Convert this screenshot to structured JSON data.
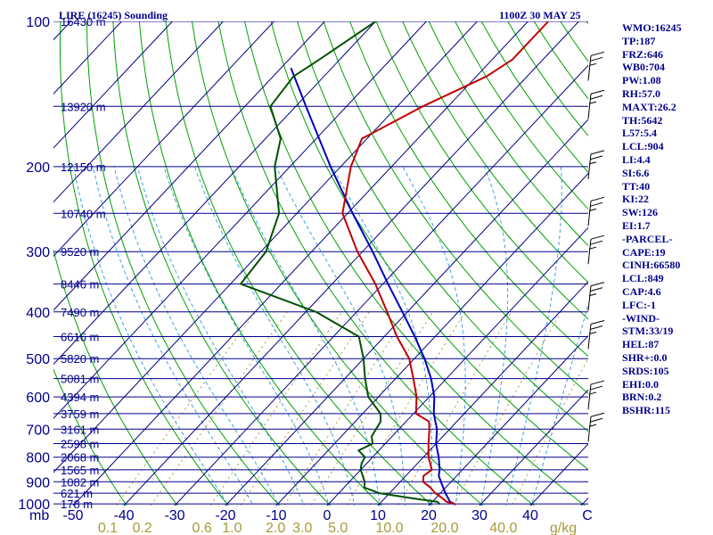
{
  "header": {
    "title": "LIRE (16245) Sounding",
    "datetime": "1100Z 30 MAY 25"
  },
  "indices": [
    "WMO:16245",
    "TP:187",
    "FRZ:646",
    "WB0:704",
    "PW:1.08",
    "RH:57.0",
    "MAXT:26.2",
    "TH:5642",
    "L57:5.4",
    "LCL:904",
    "LI:4.4",
    "SI:6.6",
    "TT:40",
    "KI:22",
    "SW:126",
    "EI:1.7",
    "-PARCEL-",
    "CAPE:19",
    "CINH:66580",
    "LCL:849",
    "CAP:4.6",
    "LFC:-1",
    "-WIND-",
    "STM:33/19",
    "HEL:87",
    "SHR+:0.0",
    "SRDS:105",
    "EHI:0.0",
    "BRN:0.2",
    "BSHR:115"
  ],
  "colors": {
    "temperature": "#c00000",
    "dewpoint": "#005000",
    "parcel": "#0000c0",
    "isotherm": "#000080",
    "dry_adiabat": "#00a000",
    "moist_adiabat": "#40a0e0",
    "mixing_ratio": "#a89a3a",
    "isobar": "#00008b"
  },
  "chart_data": {
    "type": "skew-t",
    "pressure_axis_label": "mb",
    "temperature_unit_label": "g/kg",
    "pressure_ticks": [
      "100",
      "200",
      "300",
      "400",
      "500",
      "600",
      "700",
      "800",
      "900",
      "1000"
    ],
    "temperature_ticks": [
      "-50",
      "-40",
      "-30",
      "-20",
      "-10",
      "0",
      "10",
      "20",
      "30",
      "40",
      "C"
    ],
    "mixing_ratio_ticks": [
      "0.1",
      "0.2",
      "0.6",
      "1.0",
      "2.0",
      "3.0",
      "5.0",
      "10.0",
      "20.0",
      "40.0"
    ],
    "height_levels": [
      {
        "p": 100,
        "label": "16430 m"
      },
      {
        "p": 150,
        "label": "13920 m"
      },
      {
        "p": 200,
        "label": "12150 m"
      },
      {
        "p": 250,
        "label": "10740 m"
      },
      {
        "p": 300,
        "label": "9520 m"
      },
      {
        "p": 350,
        "label": "8446 m"
      },
      {
        "p": 400,
        "label": "7490 m"
      },
      {
        "p": 450,
        "label": "6616 m"
      },
      {
        "p": 500,
        "label": "5820 m"
      },
      {
        "p": 550,
        "label": "5081 m"
      },
      {
        "p": 600,
        "label": "4394 m"
      },
      {
        "p": 650,
        "label": "3759 m"
      },
      {
        "p": 700,
        "label": "3161 m"
      },
      {
        "p": 750,
        "label": "2598 m"
      },
      {
        "p": 800,
        "label": "2068 m"
      },
      {
        "p": 850,
        "label": "1565 m"
      },
      {
        "p": 900,
        "label": "1082 m"
      },
      {
        "p": 950,
        "label": "621 m"
      },
      {
        "p": 1000,
        "label": "178 m"
      }
    ],
    "temperature": [
      [
        1002,
        25.0
      ],
      [
        990,
        22.8
      ],
      [
        970,
        21.0
      ],
      [
        950,
        19.0
      ],
      [
        925,
        17.0
      ],
      [
        900,
        14.5
      ],
      [
        875,
        13.5
      ],
      [
        850,
        14.0
      ],
      [
        800,
        11.0
      ],
      [
        750,
        8.5
      ],
      [
        700,
        6.0
      ],
      [
        675,
        4.5
      ],
      [
        650,
        0.5
      ],
      [
        600,
        -2.5
      ],
      [
        550,
        -6.5
      ],
      [
        500,
        -11.0
      ],
      [
        450,
        -17.5
      ],
      [
        400,
        -24.0
      ],
      [
        350,
        -31.5
      ],
      [
        300,
        -41.0
      ],
      [
        250,
        -51.0
      ],
      [
        200,
        -58.0
      ],
      [
        175,
        -61.0
      ],
      [
        150,
        -55.0
      ],
      [
        130,
        -48.0
      ],
      [
        120,
        -46.0
      ],
      [
        100,
        -46.0
      ]
    ],
    "dewpoint": [
      [
        1002,
        22.0
      ],
      [
        990,
        21.0
      ],
      [
        975,
        16.0
      ],
      [
        950,
        8.0
      ],
      [
        925,
        4.0
      ],
      [
        900,
        3.0
      ],
      [
        850,
        0.0
      ],
      [
        825,
        -1.0
      ],
      [
        800,
        -1.5
      ],
      [
        775,
        -4.0
      ],
      [
        750,
        -2.5
      ],
      [
        725,
        -4.0
      ],
      [
        700,
        -4.5
      ],
      [
        675,
        -5.0
      ],
      [
        650,
        -6.5
      ],
      [
        600,
        -12.0
      ],
      [
        550,
        -16.0
      ],
      [
        500,
        -20.0
      ],
      [
        450,
        -25.0
      ],
      [
        400,
        -38.0
      ],
      [
        350,
        -58.0
      ],
      [
        300,
        -59.0
      ],
      [
        250,
        -63.5
      ],
      [
        200,
        -73.0
      ],
      [
        175,
        -77.0
      ],
      [
        150,
        -85.0
      ],
      [
        130,
        -86.0
      ],
      [
        120,
        -84.0
      ],
      [
        100,
        -80.0
      ]
    ],
    "parcel": [
      [
        1002,
        25.0
      ],
      [
        990,
        23.5
      ],
      [
        950,
        21.0
      ],
      [
        900,
        18.0
      ],
      [
        875,
        16.5
      ],
      [
        849,
        15.5
      ],
      [
        800,
        13.0
      ],
      [
        750,
        10.0
      ],
      [
        700,
        7.5
      ],
      [
        650,
        4.0
      ],
      [
        600,
        1.0
      ],
      [
        550,
        -3.0
      ],
      [
        500,
        -8.0
      ],
      [
        450,
        -14.0
      ],
      [
        400,
        -21.0
      ],
      [
        350,
        -29.0
      ],
      [
        300,
        -38.0
      ],
      [
        250,
        -49.0
      ],
      [
        200,
        -62.0
      ],
      [
        150,
        -78.0
      ],
      [
        125,
        -88.0
      ]
    ]
  }
}
